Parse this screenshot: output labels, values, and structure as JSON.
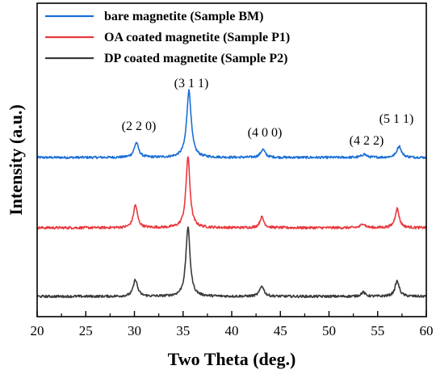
{
  "chart_data": {
    "type": "line",
    "xlabel": "Two Theta (deg.)",
    "ylabel": "Intensity (a.u.)",
    "xlim": [
      20,
      60
    ],
    "x_ticks": [
      "20",
      "25",
      "30",
      "35",
      "40",
      "45",
      "50",
      "55",
      "60"
    ],
    "y_ticks_shown": false,
    "legend_position": "top-left",
    "series": [
      {
        "name": "bare magnetite (Sample BM)",
        "color": "#1a6fd6",
        "peaks": [
          [
            30.2,
            0.22
          ],
          [
            35.6,
            1.0
          ],
          [
            43.2,
            0.12
          ],
          [
            53.6,
            0.05
          ],
          [
            57.2,
            0.17
          ]
        ]
      },
      {
        "name": "OA coated magnetite (Sample P1)",
        "color": "#e8383d",
        "peaks": [
          [
            30.1,
            0.32
          ],
          [
            35.5,
            1.0
          ],
          [
            43.1,
            0.15
          ],
          [
            53.5,
            0.06
          ],
          [
            57.0,
            0.27
          ]
        ]
      },
      {
        "name": "DP coated magnetite (Sample P2)",
        "color": "#3a3a3a",
        "peaks": [
          [
            30.1,
            0.24
          ],
          [
            35.5,
            1.0
          ],
          [
            43.1,
            0.15
          ],
          [
            53.5,
            0.06
          ],
          [
            57.0,
            0.22
          ]
        ]
      }
    ],
    "annotations": [
      {
        "text": "(2 2 0)",
        "x": 30.2
      },
      {
        "text": "(3 1 1)",
        "x": 35.6
      },
      {
        "text": "(4 0 0)",
        "x": 43.2
      },
      {
        "text": "(4 2 2)",
        "x": 53.6
      },
      {
        "text": "(5 1 1)",
        "x": 57.2
      }
    ]
  }
}
